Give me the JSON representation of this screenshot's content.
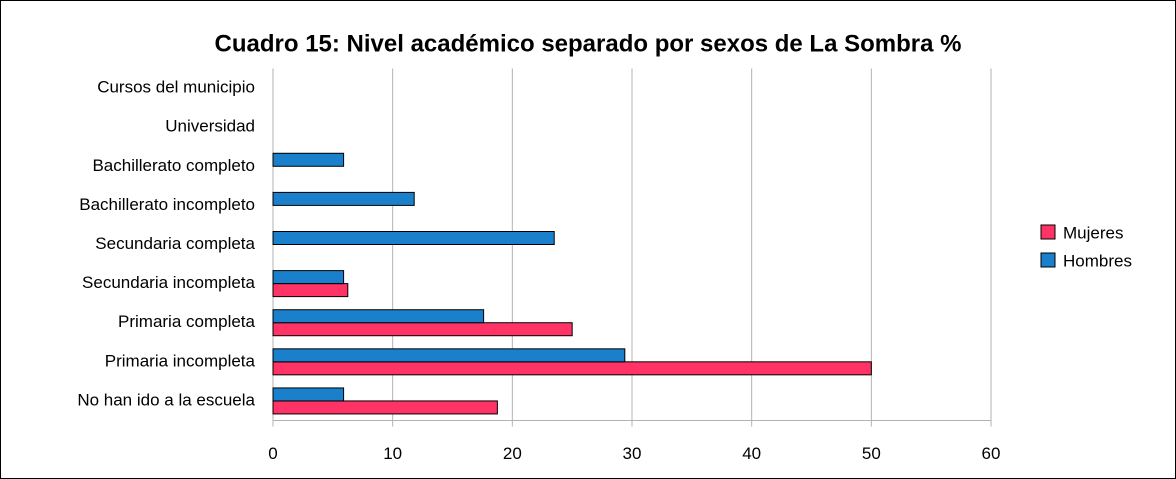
{
  "chart_data": {
    "type": "hbar",
    "title": "Cuadro 15: Nivel académico separado por sexos de La Sombra %",
    "categories": [
      "Cursos del municipio",
      "Universidad",
      "Bachillerato completo",
      "Bachillerato incompleto",
      "Secundaria completa",
      "Secundaria incompleta",
      "Primaria completa",
      "Primaria incompleta",
      "No han ido a la escuela"
    ],
    "series": [
      {
        "name": "Mujeres",
        "color": "#ff3366",
        "values": [
          0,
          0,
          0,
          0,
          0,
          6.25,
          25,
          50,
          18.75
        ]
      },
      {
        "name": "Hombres",
        "color": "#1a80cc",
        "values": [
          0,
          0,
          5.9,
          11.8,
          23.5,
          5.9,
          17.6,
          29.4,
          5.9
        ]
      }
    ],
    "xlim": [
      0,
      60
    ],
    "xticks": [
      0,
      10,
      20,
      30,
      40,
      50,
      60
    ],
    "grid": true,
    "legend": "right"
  }
}
